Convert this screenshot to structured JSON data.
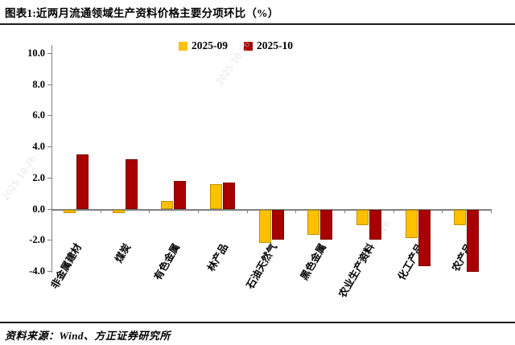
{
  "header": {
    "title": "图表1:近两月流通领域生产资料价格主要分项环比（%）"
  },
  "footer": {
    "source": "资料来源：Wind、方正证券研究所"
  },
  "watermark": {
    "text": "2025-10-26"
  },
  "colors": {
    "series_2025_09": "#FFC000",
    "series_2025_10": "#A80000",
    "axis": "#7F7F7F",
    "rule": "#1C1C1C"
  },
  "chart_data": {
    "type": "bar",
    "title": "近两月流通领域生产资料价格主要分项环比（%）",
    "categories": [
      "非金属建材",
      "煤炭",
      "有色金属",
      "林产品",
      "石油天然气",
      "黑色金属",
      "农业生产资料",
      "化工产品",
      "农产品"
    ],
    "series": [
      {
        "name": "2025-09",
        "color": "#FFC000",
        "values": [
          -0.2,
          -0.2,
          0.5,
          1.6,
          -2.1,
          -1.6,
          -1.0,
          -1.8,
          -1.0
        ]
      },
      {
        "name": "2025-10",
        "color": "#A80000",
        "values": [
          3.5,
          3.2,
          1.8,
          1.7,
          -1.9,
          -1.9,
          -1.9,
          -3.6,
          -4.0
        ]
      }
    ],
    "xlabel": "",
    "ylabel": "",
    "ylim": [
      -4.0,
      10.6
    ],
    "yticks": [
      10.0,
      8.0,
      6.0,
      4.0,
      2.0,
      0.0,
      -2.0,
      -4.0
    ],
    "grid": false,
    "legend_position": "top-center"
  }
}
